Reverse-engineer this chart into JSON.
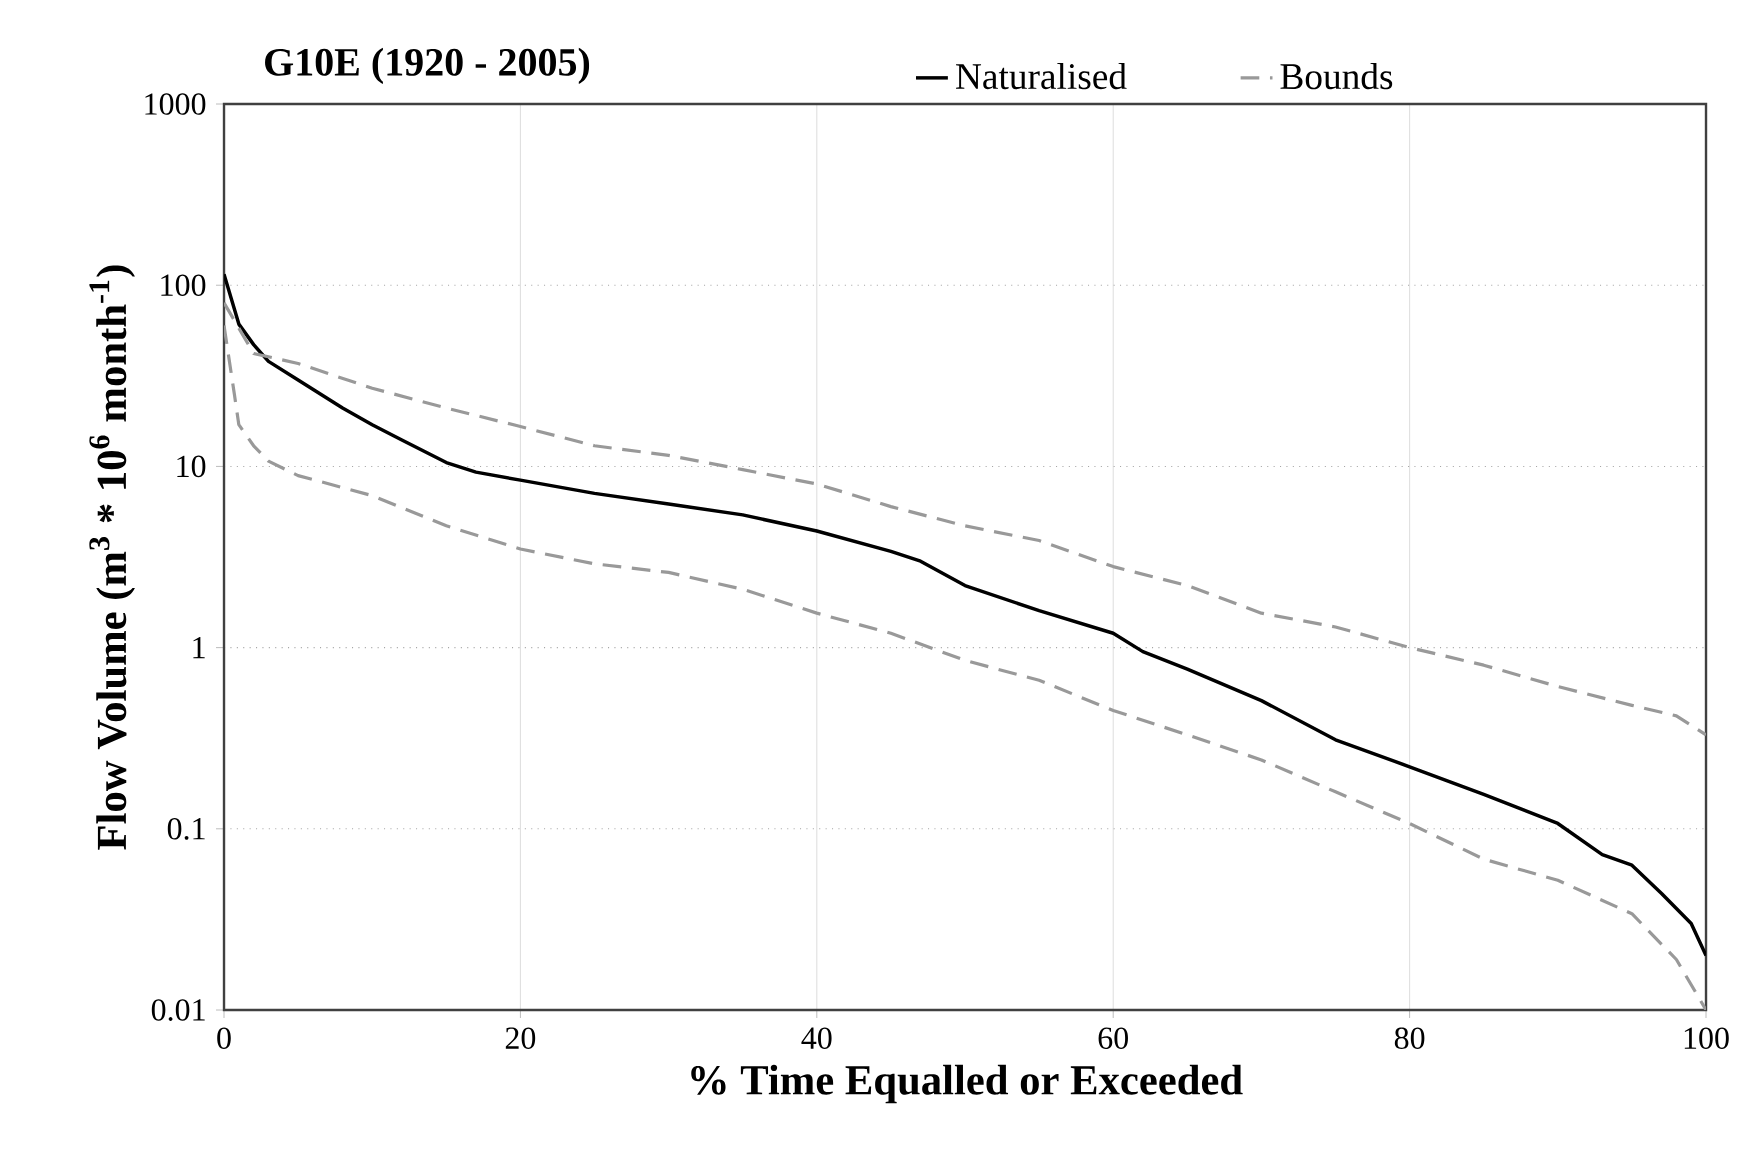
{
  "chart_data": {
    "type": "line",
    "title": "G10E (1920 - 2005)",
    "xlabel": "% Time Equalled or Exceeded",
    "ylabel": "Flow Volume (m$^{3}$ * 10$^{6}$ month$^{-1}$)",
    "xlim": [
      0,
      100
    ],
    "xticks": [
      0,
      20,
      40,
      60,
      80,
      100
    ],
    "ylim": [
      0.01,
      1000
    ],
    "yticks": [
      0.01,
      0.1,
      1,
      10,
      100,
      1000
    ],
    "log": true,
    "grid": true,
    "legend": "top",
    "series": [
      {
        "name": "Naturalised",
        "color": "#000000",
        "line_style": "solid",
        "x": [
          0,
          1,
          2,
          3,
          5,
          8,
          10,
          12,
          15,
          17,
          20,
          25,
          30,
          35,
          40,
          45,
          47,
          50,
          55,
          60,
          62,
          65,
          70,
          75,
          80,
          85,
          90,
          93,
          95,
          97,
          99,
          100
        ],
        "values": [
          115,
          61,
          47,
          38,
          30,
          21,
          17,
          14,
          10.5,
          9.3,
          8.4,
          7.1,
          6.2,
          5.4,
          4.4,
          3.4,
          3.0,
          2.2,
          1.6,
          1.2,
          0.95,
          0.76,
          0.51,
          0.31,
          0.22,
          0.155,
          0.107,
          0.072,
          0.063,
          0.044,
          0.03,
          0.02
        ]
      },
      {
        "name": "Bounds",
        "color": "#999999",
        "line_style": "dashed",
        "x": [
          0,
          2,
          5,
          10,
          15,
          20,
          25,
          30,
          35,
          40,
          45,
          50,
          55,
          60,
          65,
          70,
          75,
          80,
          85,
          90,
          95,
          98,
          100
        ],
        "values": [
          80,
          42,
          37,
          27,
          21,
          16.6,
          13,
          11.5,
          9.6,
          8,
          6,
          4.7,
          3.9,
          2.8,
          2.2,
          1.55,
          1.3,
          1.0,
          0.8,
          0.61,
          0.48,
          0.42,
          0.33
        ]
      },
      {
        "color": "#999999",
        "line_style": "dashed",
        "x": [
          0,
          0.7,
          1,
          2,
          3,
          5,
          10,
          15,
          20,
          25,
          30,
          35,
          40,
          45,
          50,
          55,
          60,
          65,
          70,
          75,
          80,
          85,
          90,
          95,
          98,
          100
        ],
        "values": [
          60,
          25,
          17,
          13,
          10.7,
          8.9,
          6.9,
          4.7,
          3.5,
          2.9,
          2.6,
          2.1,
          1.55,
          1.2,
          0.85,
          0.66,
          0.45,
          0.33,
          0.24,
          0.16,
          0.107,
          0.068,
          0.052,
          0.034,
          0.019,
          0.01
        ]
      }
    ]
  }
}
